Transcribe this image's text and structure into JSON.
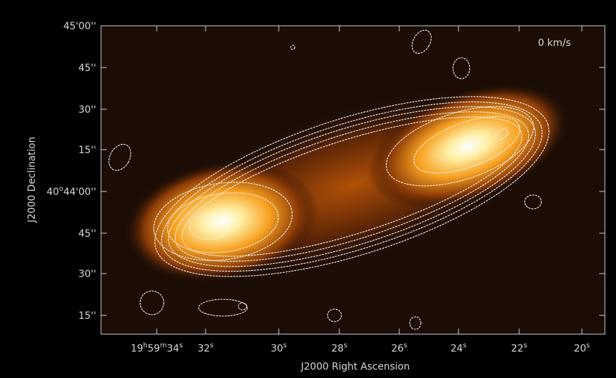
{
  "annotation": "0 km/s",
  "x_axis": {
    "title": "J2000 Right Ascension",
    "ticks": [
      [
        "19",
        "h",
        "59",
        "m",
        "34",
        "s"
      ],
      [
        "32",
        "s"
      ],
      [
        "30",
        "s"
      ],
      [
        "28",
        "s"
      ],
      [
        "26",
        "s"
      ],
      [
        "24",
        "s"
      ],
      [
        "22",
        "s"
      ],
      [
        "20",
        "s"
      ]
    ]
  },
  "y_axis": {
    "title": "J2000 Declination",
    "ticks": [
      [
        "45'00''"
      ],
      [
        "45''"
      ],
      [
        "30''"
      ],
      [
        "15''"
      ],
      [
        "40",
        "o",
        "44'00''"
      ],
      [
        "45''"
      ],
      [
        "30''"
      ],
      [
        "15''"
      ]
    ]
  }
}
